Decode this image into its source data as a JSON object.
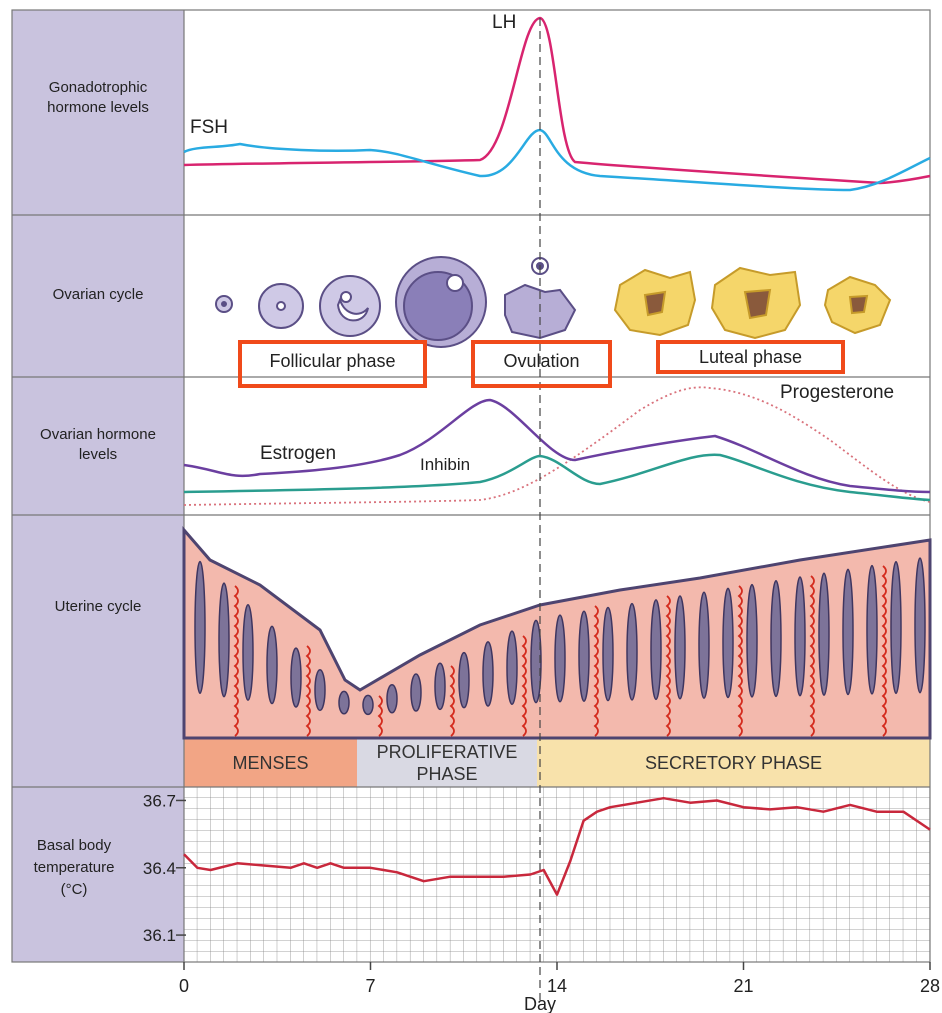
{
  "panels": {
    "gonadotrophic": "Gonadotrophic hormone levels",
    "ovarian_cycle": "Ovarian cycle",
    "ovarian_hormone": "Ovarian hormone levels",
    "uterine": "Uterine cycle"
  },
  "curve_labels": {
    "lh": "LH",
    "fsh": "FSH",
    "estrogen": "Estrogen",
    "inhibin": "Inhibin",
    "progesterone": "Progesterone"
  },
  "ovarian_phases": [
    "Follicular phase",
    "Ovulation",
    "Luteal phase"
  ],
  "uterine_phases": [
    "MENSES",
    "PROLIFERATIVE PHASE",
    "SECRETORY PHASE"
  ],
  "chart_data": {
    "type": "line",
    "ylabel": [
      "Basal body",
      "temperature",
      "(°C)"
    ],
    "xlabel": "Day",
    "color": "#c8283c",
    "x": [
      0,
      0.5,
      1,
      2,
      3,
      4,
      4.5,
      5,
      5.5,
      6,
      7,
      8,
      9,
      10,
      11,
      12,
      13,
      13.5,
      14,
      14.5,
      15,
      15.5,
      16,
      17,
      18,
      19,
      20,
      21,
      22,
      23,
      24,
      25,
      26,
      27,
      28
    ],
    "values": [
      36.46,
      36.4,
      36.39,
      36.42,
      36.41,
      36.4,
      36.42,
      36.4,
      36.42,
      36.4,
      36.4,
      36.38,
      36.34,
      36.36,
      36.36,
      36.36,
      36.37,
      36.39,
      36.28,
      36.43,
      36.61,
      36.65,
      36.67,
      36.69,
      36.71,
      36.69,
      36.7,
      36.67,
      36.66,
      36.67,
      36.65,
      36.68,
      36.65,
      36.65,
      36.57
    ],
    "xlim": [
      0,
      28
    ],
    "xticks": [
      0,
      7,
      14,
      21,
      28
    ],
    "ylim": [
      35.98,
      36.76
    ],
    "yticks": [
      36.1,
      36.4,
      36.7
    ],
    "grid": true
  }
}
